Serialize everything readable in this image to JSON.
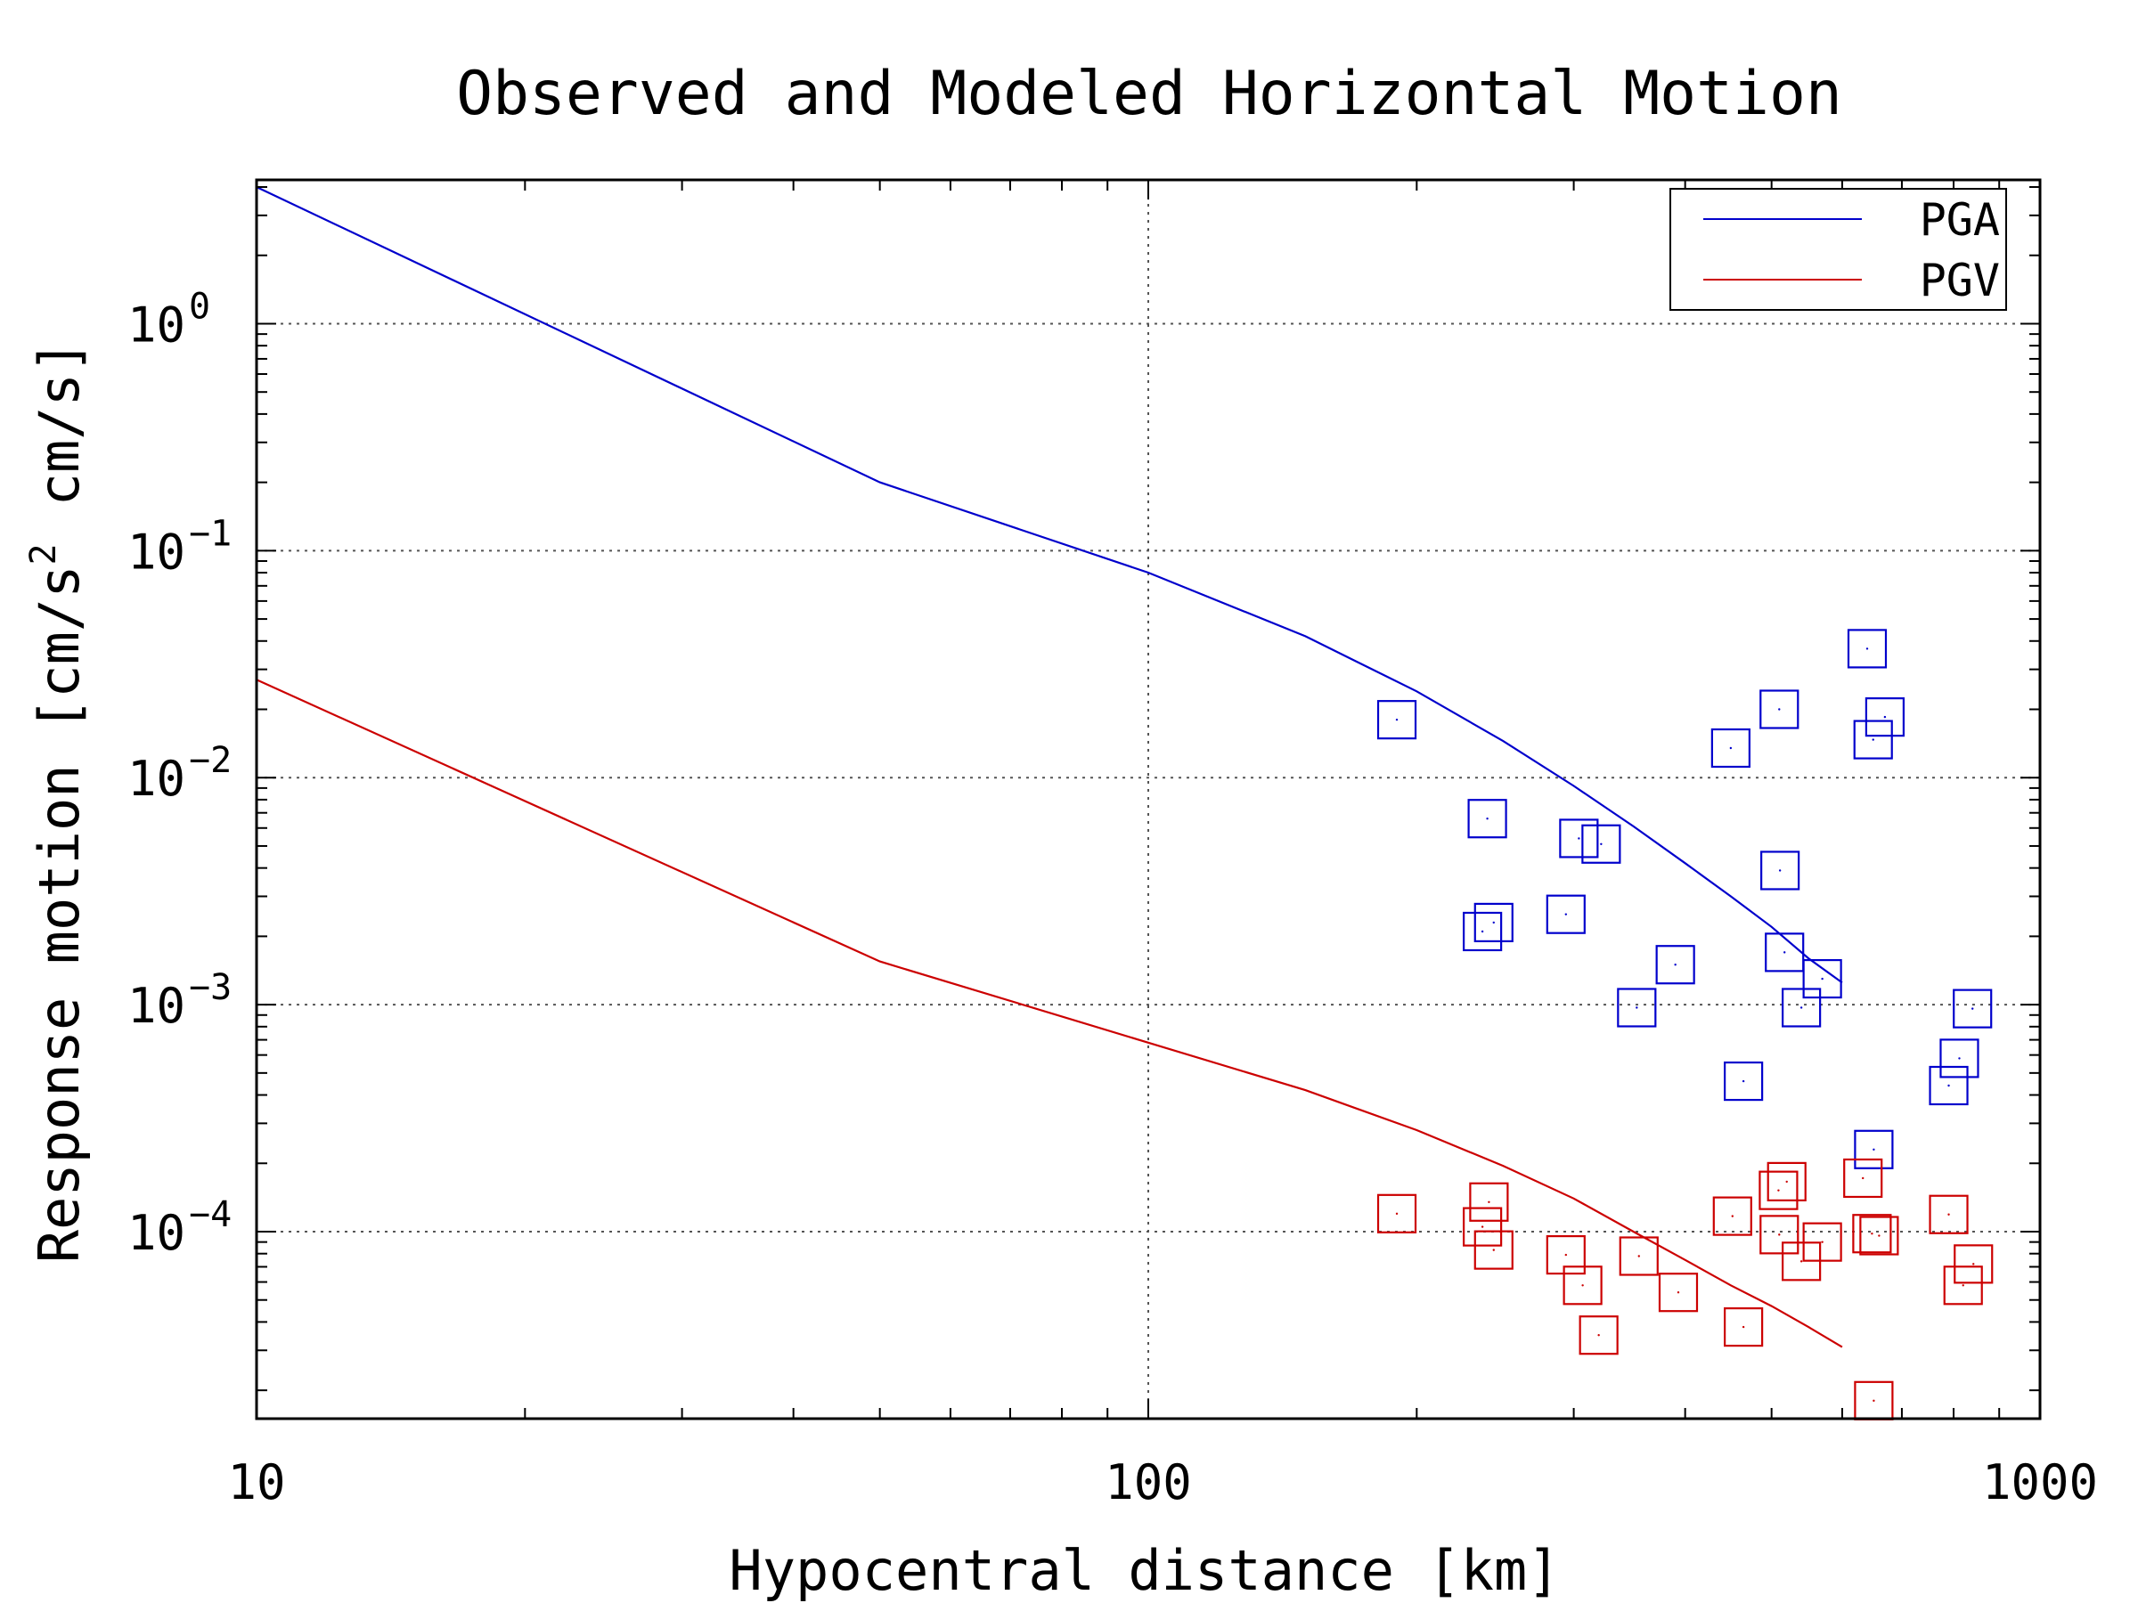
{
  "chart_data": {
    "type": "scatter",
    "title": "Observed and Modeled Horizontal Motion",
    "xlabel": "Hypocentral distance [km]",
    "ylabel": {
      "main": "Response motion [cm/s",
      "sup": "2",
      "tail": "cm/s]"
    },
    "x_scale": "log",
    "y_scale": "log",
    "xlim": [
      10,
      1000
    ],
    "ylim": [
      1.5e-05,
      4.3
    ],
    "grid": true,
    "legend_position": "top-right",
    "x_ticks": [
      {
        "value": 10,
        "label": "10"
      },
      {
        "value": 100,
        "label": "100"
      },
      {
        "value": 1000,
        "label": "1000"
      }
    ],
    "y_ticks": [
      {
        "value": 1,
        "base": "10",
        "exp": "0"
      },
      {
        "value": 0.1,
        "base": "10",
        "exp": "−1"
      },
      {
        "value": 0.01,
        "base": "10",
        "exp": "−2"
      },
      {
        "value": 0.001,
        "base": "10",
        "exp": "−3"
      },
      {
        "value": 0.0001,
        "base": "10",
        "exp": "−4"
      }
    ],
    "series": [
      {
        "name": "PGA",
        "color": "#0000cc",
        "model_curve": [
          [
            10,
            4.0
          ],
          [
            50,
            0.2
          ],
          [
            100,
            0.08
          ],
          [
            150,
            0.042
          ],
          [
            200,
            0.024
          ],
          [
            250,
            0.0145
          ],
          [
            300,
            0.0092
          ],
          [
            350,
            0.0061
          ],
          [
            400,
            0.0042
          ],
          [
            450,
            0.003
          ],
          [
            500,
            0.0022
          ],
          [
            550,
            0.0016
          ],
          [
            600,
            0.00125
          ]
        ],
        "observed": [
          [
            190,
            0.018
          ],
          [
            240,
            0.0066
          ],
          [
            237,
            0.0021
          ],
          [
            244,
            0.0023
          ],
          [
            294,
            0.0025
          ],
          [
            304,
            0.0054
          ],
          [
            322,
            0.0051
          ],
          [
            353,
            0.00097
          ],
          [
            390,
            0.0015
          ],
          [
            450,
            0.0135
          ],
          [
            465,
            0.00046
          ],
          [
            510,
            0.02
          ],
          [
            511,
            0.0039
          ],
          [
            517,
            0.0017
          ],
          [
            540,
            0.00097
          ],
          [
            570,
            0.0013
          ],
          [
            640,
            0.037
          ],
          [
            650,
            0.0147
          ],
          [
            670,
            0.0185
          ],
          [
            651,
            0.00023
          ],
          [
            790,
            0.00044
          ],
          [
            812,
            0.00058
          ],
          [
            840,
            0.00096
          ]
        ]
      },
      {
        "name": "PGV",
        "color": "#cc0000",
        "model_curve": [
          [
            10,
            0.027
          ],
          [
            50,
            0.00155
          ],
          [
            100,
            0.00068
          ],
          [
            150,
            0.00042
          ],
          [
            200,
            0.00028
          ],
          [
            250,
            0.000195
          ],
          [
            300,
            0.00014
          ],
          [
            350,
            0.0001
          ],
          [
            400,
            7.5e-05
          ],
          [
            450,
            5.8e-05
          ],
          [
            500,
            4.7e-05
          ],
          [
            550,
            3.8e-05
          ],
          [
            600,
            3.1e-05
          ]
        ],
        "observed": [
          [
            190,
            0.00012
          ],
          [
            237,
            0.000105
          ],
          [
            241,
            0.000135
          ],
          [
            244,
            8.3e-05
          ],
          [
            294,
            7.9e-05
          ],
          [
            307,
            5.8e-05
          ],
          [
            320,
            3.5e-05
          ],
          [
            355,
            7.8e-05
          ],
          [
            393,
            5.4e-05
          ],
          [
            452,
            0.000117
          ],
          [
            465,
            3.8e-05
          ],
          [
            509,
            0.000152
          ],
          [
            520,
            0.000166
          ],
          [
            510,
            9.7e-05
          ],
          [
            540,
            7.4e-05
          ],
          [
            570,
            9e-05
          ],
          [
            633,
            0.000172
          ],
          [
            648,
            9.8e-05
          ],
          [
            660,
            9.6e-05
          ],
          [
            651,
            1.8e-05
          ],
          [
            790,
            0.000119
          ],
          [
            820,
            5.8e-05
          ],
          [
            842,
            7.2e-05
          ]
        ]
      }
    ]
  }
}
